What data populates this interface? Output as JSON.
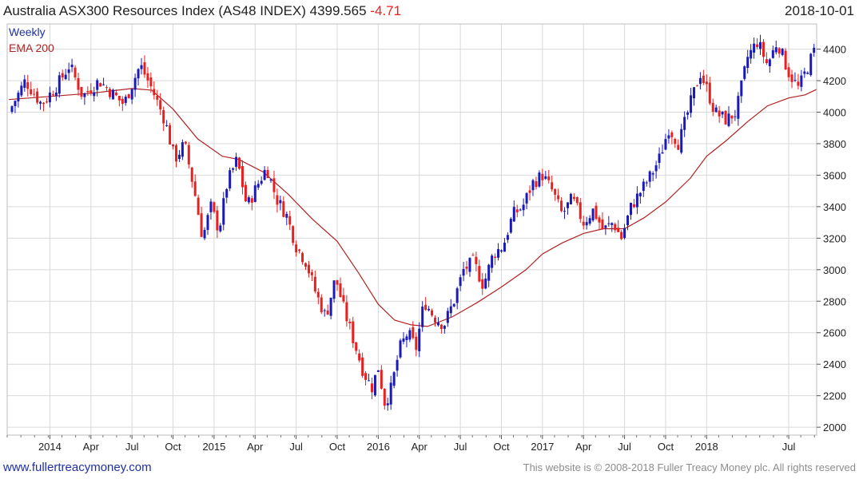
{
  "header": {
    "title": "Australia ASX300 Resources Index (AS48 INDEX) 4399.565",
    "change": "-4.71",
    "date": "2018-10-01"
  },
  "footer": {
    "site": "www.fullertreacymoney.com",
    "copyright": "This website is © 2008-2018 Fuller Treacy Money plc. All rights reserved"
  },
  "colors": {
    "up": "#1a1ab8",
    "down": "#e8201f",
    "ema": "#b22222",
    "grid": "#d9d9d9"
  },
  "chart_data": {
    "type": "candlestick",
    "legend": [
      "Weekly",
      "EMA 200"
    ],
    "ylim": [
      1950,
      4560
    ],
    "y_ticks": [
      2000,
      2200,
      2400,
      2600,
      2800,
      3000,
      3200,
      3400,
      3600,
      3800,
      4000,
      4200,
      4400
    ],
    "x_ticks": [
      {
        "label": "2014",
        "t": 2014.0
      },
      {
        "label": "Apr",
        "t": 2014.25
      },
      {
        "label": "Jul",
        "t": 2014.5
      },
      {
        "label": "Oct",
        "t": 2014.75
      },
      {
        "label": "2015",
        "t": 2015.0
      },
      {
        "label": "Apr",
        "t": 2015.25
      },
      {
        "label": "Jul",
        "t": 2015.5
      },
      {
        "label": "Oct",
        "t": 2015.75
      },
      {
        "label": "2016",
        "t": 2016.0
      },
      {
        "label": "Apr",
        "t": 2016.25
      },
      {
        "label": "Jul",
        "t": 2016.5
      },
      {
        "label": "Oct",
        "t": 2016.75
      },
      {
        "label": "2017",
        "t": 2017.0
      },
      {
        "label": "Apr",
        "t": 2017.25
      },
      {
        "label": "Jul",
        "t": 2017.5
      },
      {
        "label": "Oct",
        "t": 2017.75
      },
      {
        "label": "2018",
        "t": 2018.0
      },
      {
        "label": "Jul",
        "t": 2018.5
      }
    ],
    "xlim": [
      2013.74,
      2018.67
    ],
    "price_path": [
      {
        "t": 2013.75,
        "v": 4000
      },
      {
        "t": 2013.85,
        "v": 4200
      },
      {
        "t": 2013.95,
        "v": 4050
      },
      {
        "t": 2014.05,
        "v": 4180
      },
      {
        "t": 2014.12,
        "v": 4300
      },
      {
        "t": 2014.2,
        "v": 4100
      },
      {
        "t": 2014.3,
        "v": 4200
      },
      {
        "t": 2014.45,
        "v": 4050
      },
      {
        "t": 2014.55,
        "v": 4300
      },
      {
        "t": 2014.62,
        "v": 4150
      },
      {
        "t": 2014.7,
        "v": 3950
      },
      {
        "t": 2014.76,
        "v": 3700
      },
      {
        "t": 2014.82,
        "v": 3800
      },
      {
        "t": 2014.88,
        "v": 3500
      },
      {
        "t": 2014.93,
        "v": 3200
      },
      {
        "t": 2014.98,
        "v": 3400
      },
      {
        "t": 2015.03,
        "v": 3250
      },
      {
        "t": 2015.08,
        "v": 3550
      },
      {
        "t": 2015.14,
        "v": 3700
      },
      {
        "t": 2015.2,
        "v": 3400
      },
      {
        "t": 2015.27,
        "v": 3550
      },
      {
        "t": 2015.32,
        "v": 3650
      },
      {
        "t": 2015.38,
        "v": 3450
      },
      {
        "t": 2015.44,
        "v": 3350
      },
      {
        "t": 2015.5,
        "v": 3150
      },
      {
        "t": 2015.56,
        "v": 3050
      },
      {
        "t": 2015.62,
        "v": 2850
      },
      {
        "t": 2015.68,
        "v": 2700
      },
      {
        "t": 2015.74,
        "v": 2950
      },
      {
        "t": 2015.79,
        "v": 2750
      },
      {
        "t": 2015.85,
        "v": 2550
      },
      {
        "t": 2015.91,
        "v": 2350
      },
      {
        "t": 2015.96,
        "v": 2250
      },
      {
        "t": 2016.0,
        "v": 2380
      },
      {
        "t": 2016.04,
        "v": 2150
      },
      {
        "t": 2016.08,
        "v": 2250
      },
      {
        "t": 2016.13,
        "v": 2500
      },
      {
        "t": 2016.18,
        "v": 2600
      },
      {
        "t": 2016.23,
        "v": 2500
      },
      {
        "t": 2016.28,
        "v": 2800
      },
      {
        "t": 2016.34,
        "v": 2700
      },
      {
        "t": 2016.4,
        "v": 2650
      },
      {
        "t": 2016.46,
        "v": 2800
      },
      {
        "t": 2016.52,
        "v": 3000
      },
      {
        "t": 2016.58,
        "v": 3050
      },
      {
        "t": 2016.64,
        "v": 2900
      },
      {
        "t": 2016.7,
        "v": 3100
      },
      {
        "t": 2016.76,
        "v": 3150
      },
      {
        "t": 2016.82,
        "v": 3350
      },
      {
        "t": 2016.88,
        "v": 3400
      },
      {
        "t": 2016.94,
        "v": 3550
      },
      {
        "t": 2017.0,
        "v": 3600
      },
      {
        "t": 2017.06,
        "v": 3500
      },
      {
        "t": 2017.12,
        "v": 3350
      },
      {
        "t": 2017.18,
        "v": 3450
      },
      {
        "t": 2017.25,
        "v": 3300
      },
      {
        "t": 2017.31,
        "v": 3380
      },
      {
        "t": 2017.37,
        "v": 3250
      },
      {
        "t": 2017.43,
        "v": 3300
      },
      {
        "t": 2017.48,
        "v": 3200
      },
      {
        "t": 2017.54,
        "v": 3400
      },
      {
        "t": 2017.6,
        "v": 3500
      },
      {
        "t": 2017.66,
        "v": 3600
      },
      {
        "t": 2017.71,
        "v": 3700
      },
      {
        "t": 2017.77,
        "v": 3900
      },
      {
        "t": 2017.83,
        "v": 3800
      },
      {
        "t": 2017.9,
        "v": 4050
      },
      {
        "t": 2017.96,
        "v": 4250
      },
      {
        "t": 2018.0,
        "v": 4150
      },
      {
        "t": 2018.05,
        "v": 4000
      },
      {
        "t": 2018.12,
        "v": 3950
      },
      {
        "t": 2018.18,
        "v": 4000
      },
      {
        "t": 2018.25,
        "v": 4350
      },
      {
        "t": 2018.31,
        "v": 4450
      },
      {
        "t": 2018.37,
        "v": 4300
      },
      {
        "t": 2018.43,
        "v": 4450
      },
      {
        "t": 2018.5,
        "v": 4250
      },
      {
        "t": 2018.56,
        "v": 4150
      },
      {
        "t": 2018.62,
        "v": 4300
      },
      {
        "t": 2018.66,
        "v": 4400
      }
    ],
    "ema_path": [
      {
        "t": 2013.75,
        "v": 4080
      },
      {
        "t": 2014.0,
        "v": 4100
      },
      {
        "t": 2014.25,
        "v": 4120
      },
      {
        "t": 2014.5,
        "v": 4150
      },
      {
        "t": 2014.62,
        "v": 4140
      },
      {
        "t": 2014.75,
        "v": 4020
      },
      {
        "t": 2014.9,
        "v": 3830
      },
      {
        "t": 2015.05,
        "v": 3720
      },
      {
        "t": 2015.15,
        "v": 3700
      },
      {
        "t": 2015.3,
        "v": 3620
      },
      {
        "t": 2015.45,
        "v": 3480
      },
      {
        "t": 2015.6,
        "v": 3320
      },
      {
        "t": 2015.75,
        "v": 3180
      },
      {
        "t": 2015.88,
        "v": 2980
      },
      {
        "t": 2016.0,
        "v": 2780
      },
      {
        "t": 2016.1,
        "v": 2680
      },
      {
        "t": 2016.2,
        "v": 2650
      },
      {
        "t": 2016.3,
        "v": 2640
      },
      {
        "t": 2016.45,
        "v": 2700
      },
      {
        "t": 2016.6,
        "v": 2790
      },
      {
        "t": 2016.75,
        "v": 2890
      },
      {
        "t": 2016.9,
        "v": 3000
      },
      {
        "t": 2017.0,
        "v": 3100
      },
      {
        "t": 2017.12,
        "v": 3170
      },
      {
        "t": 2017.25,
        "v": 3230
      },
      {
        "t": 2017.37,
        "v": 3260
      },
      {
        "t": 2017.5,
        "v": 3260
      },
      {
        "t": 2017.62,
        "v": 3330
      },
      {
        "t": 2017.75,
        "v": 3430
      },
      {
        "t": 2017.9,
        "v": 3580
      },
      {
        "t": 2018.0,
        "v": 3720
      },
      {
        "t": 2018.12,
        "v": 3820
      },
      {
        "t": 2018.25,
        "v": 3940
      },
      {
        "t": 2018.37,
        "v": 4040
      },
      {
        "t": 2018.5,
        "v": 4090
      },
      {
        "t": 2018.6,
        "v": 4110
      },
      {
        "t": 2018.67,
        "v": 4145
      }
    ]
  }
}
